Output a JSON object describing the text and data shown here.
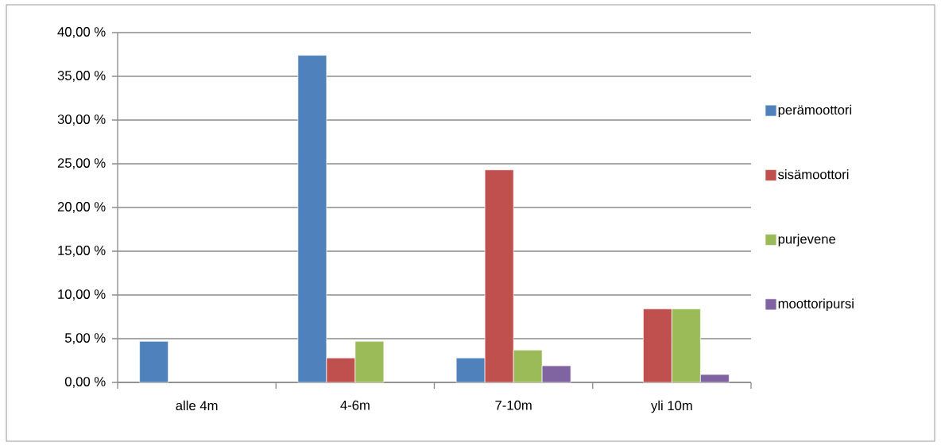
{
  "chart_data": {
    "type": "bar",
    "categories": [
      "alle 4m",
      "4-6m",
      "7-10m",
      "yli 10m"
    ],
    "series": [
      {
        "name": "perämoottori",
        "color": "#4f81bd",
        "values": [
          4.7,
          37.4,
          2.8,
          null
        ]
      },
      {
        "name": "sisämoottori",
        "color": "#c0504d",
        "values": [
          null,
          2.8,
          24.3,
          8.4
        ]
      },
      {
        "name": "purjevene",
        "color": "#9bbb59",
        "values": [
          null,
          4.7,
          3.7,
          8.4
        ]
      },
      {
        "name": "moottoripursi",
        "color": "#8064a2",
        "values": [
          null,
          null,
          1.9,
          0.9
        ]
      }
    ],
    "ylim": [
      0,
      40
    ],
    "yticks": [
      {
        "value": 0,
        "label": "0,00 %"
      },
      {
        "value": 5,
        "label": "5,00 %"
      },
      {
        "value": 10,
        "label": "10,00 %"
      },
      {
        "value": 15,
        "label": "15,00 %"
      },
      {
        "value": 20,
        "label": "20,00 %"
      },
      {
        "value": 25,
        "label": "25,00 %"
      },
      {
        "value": 30,
        "label": "30,00 %"
      },
      {
        "value": 35,
        "label": "35,00 %"
      },
      {
        "value": 40,
        "label": "40,00 %"
      }
    ],
    "grid": "y",
    "legend": "right"
  }
}
